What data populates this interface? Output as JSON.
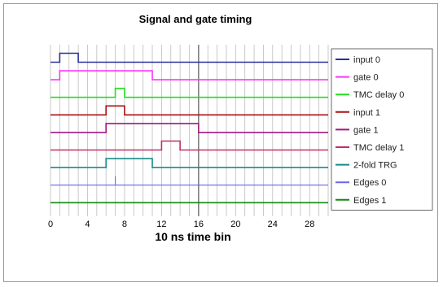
{
  "chart_data": {
    "type": "line",
    "step": true,
    "title": "Signal and gate timing",
    "xlabel": "10 ns time bin",
    "ylabel": "",
    "xlim": [
      0,
      30
    ],
    "xticks": [
      0,
      4,
      8,
      12,
      16,
      20,
      24,
      28
    ],
    "grid": true,
    "legend_position": "right",
    "series": [
      {
        "name": "input 0",
        "color": "#2b2f9e",
        "transitions": [
          [
            0,
            0
          ],
          [
            1,
            1
          ],
          [
            3,
            0
          ]
        ],
        "thin": false
      },
      {
        "name": "gate 0",
        "color": "#ff33ff",
        "transitions": [
          [
            0,
            0
          ],
          [
            1,
            1
          ],
          [
            11,
            0
          ]
        ],
        "thin": false
      },
      {
        "name": "TMC delay 0",
        "color": "#22dd22",
        "transitions": [
          [
            0,
            0
          ],
          [
            7,
            1
          ],
          [
            8,
            0
          ]
        ],
        "thin": false
      },
      {
        "name": "input 1",
        "color": "#aa1111",
        "transitions": [
          [
            0,
            0
          ],
          [
            6,
            1
          ],
          [
            8,
            0
          ]
        ],
        "thin": false
      },
      {
        "name": "gate 1",
        "color": "#a01880",
        "transitions": [
          [
            0,
            0
          ],
          [
            6,
            1
          ],
          [
            16,
            0
          ]
        ],
        "thin": false
      },
      {
        "name": "TMC delay 1",
        "color": "#c0306a",
        "transitions": [
          [
            0,
            0
          ],
          [
            12,
            1
          ],
          [
            14,
            0
          ]
        ],
        "thin": false
      },
      {
        "name": "2-fold TRG",
        "color": "#1a8a8a",
        "transitions": [
          [
            0,
            0
          ],
          [
            6,
            1
          ],
          [
            11,
            0
          ]
        ],
        "thin": false
      },
      {
        "name": "Edges 0",
        "color": "#6666ee",
        "spikes": [
          7
        ],
        "thin": true
      },
      {
        "name": "Edges 1",
        "color": "#118811",
        "spikes": [],
        "thin": false
      }
    ]
  }
}
